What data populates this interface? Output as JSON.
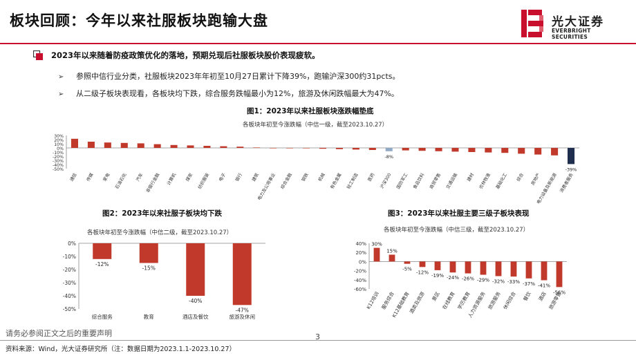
{
  "header": {
    "title": "板块回顾：今年以来社服板块跑输大盘",
    "logo_cn": "光大证券",
    "logo_en": "EVERBRIGHT SECURITIES"
  },
  "summary": {
    "lead": "2023年以来随着防疫政策优化的落地，预期兑现后社服板块股价表现疲软。",
    "bullets": [
      "参照中信行业分类，社服板块2023年年初至10月27日累计下降39%，跑输沪深300约31pcts。",
      "从二级子板块表现看，各板块均下跌，综合服务跌幅最小为12%，旅游及休闲跌幅最大为47%。"
    ]
  },
  "figures": {
    "fig1_title": "图1：2023年以来社服板块涨跌幅垫底",
    "fig1_sub": "各板块年初至今涨跌幅（中信一级，截至2023.10.27）",
    "fig2_title": "图2：2023年以来社服子板块均下跌",
    "fig2_sub": "各板块年初至今涨跌幅（中信二级，截至2023.10.27）",
    "fig3_title": "图3：2023年以来社服主要三级子板块表现",
    "fig3_sub": "各板块年初至今涨跌幅（中信三级，截至2023.10.27）"
  },
  "footer": {
    "disclaimer": "请务必参阅正文之后的重要声明",
    "source": "资料来源：Wind，光大证券研究所（注：数据日期为2023.1.1-2023.10.27）",
    "page": "3"
  },
  "colors": {
    "brand_red": "#c8102e",
    "bar_red": "#c0392b",
    "bar_highlight": "#8fa9c7",
    "bar_navy": "#1f2d4e"
  },
  "chart_data": [
    {
      "type": "bar",
      "title": "图1：2023年以来社服板块涨跌幅垫底",
      "subtitle": "各板块年初至今涨跌幅（中信一级，截至2023.10.27）",
      "ylim": [
        -50,
        30
      ],
      "yticks": [
        "30%",
        "20%",
        "10%",
        "0%",
        "-10%",
        "-20%",
        "-30%",
        "-40%",
        "-50%"
      ],
      "categories": [
        "通信",
        "传媒",
        "家电",
        "石油石化",
        "汽车",
        "非银行金融",
        "计算机",
        "煤炭",
        "纺织服装",
        "电子",
        "银行",
        "建筑",
        "电力及公用事业",
        "综合金融",
        "钢铁",
        "机械",
        "有色金属",
        "轻工制造",
        "医药",
        "沪深300",
        "国防军工",
        "食品饮料",
        "商贸零售",
        "交通运输",
        "建材",
        "农林牧渔",
        "基础化工",
        "综合",
        "房地产",
        "电力设备及新能源",
        "消费者服务"
      ],
      "values": [
        22,
        15,
        13,
        12,
        11,
        9,
        7,
        6,
        5,
        4,
        3,
        1,
        0,
        -1,
        -1,
        -2,
        -3,
        -4,
        -5,
        -8,
        -6,
        -7,
        -8,
        -9,
        -10,
        -11,
        -12,
        -14,
        -16,
        -18,
        -39
      ],
      "data_labels": {
        "沪深300": "-8%",
        "消费者服务": "-39%"
      },
      "highlight": {
        "沪深300": "#8fa9c7",
        "消费者服务": "#1f2d4e"
      }
    },
    {
      "type": "bar",
      "title": "图2：2023年以来社服子板块均下跌",
      "subtitle": "各板块年初至今涨跌幅（中信二级，截至2023.10.27）",
      "ylim": [
        -50,
        0
      ],
      "yticks": [
        "0%",
        "-10%",
        "-20%",
        "-30%",
        "-40%",
        "-50%"
      ],
      "categories": [
        "综合服务",
        "教育",
        "酒店及餐饮",
        "旅游及休闲"
      ],
      "values": [
        -12,
        -15,
        -40,
        -47
      ],
      "labels": [
        "-12%",
        "-15%",
        "-40%",
        "-47%"
      ]
    },
    {
      "type": "bar",
      "title": "图3：2023年以来社服主要三级子板块表现",
      "subtitle": "各板块年初至今涨跌幅（中信三级，截至2023.10.27）",
      "ylim": [
        -60,
        40
      ],
      "yticks": [
        "40%",
        "20%",
        "0%",
        "-20%",
        "-40%",
        "-60%"
      ],
      "categories": [
        "K12培训",
        "服务综合",
        "K12基础教育",
        "酒类及旅游",
        "景区",
        "在线教育",
        "学历教育",
        "人力资源服务",
        "旅游服务",
        "休闲综合",
        "餐饮",
        "酒店",
        "旅游零售"
      ],
      "values": [
        30,
        15,
        -5,
        -12,
        -19,
        -24,
        -26,
        -29,
        -32,
        -33,
        -37,
        -41,
        -56
      ],
      "labels": [
        "30%",
        "15%",
        "-5%",
        "-12%",
        "-19%",
        "-24%",
        "-26%",
        "-29%",
        "-32%",
        "-33%",
        "-37%",
        "-41%",
        "-56%"
      ]
    }
  ]
}
